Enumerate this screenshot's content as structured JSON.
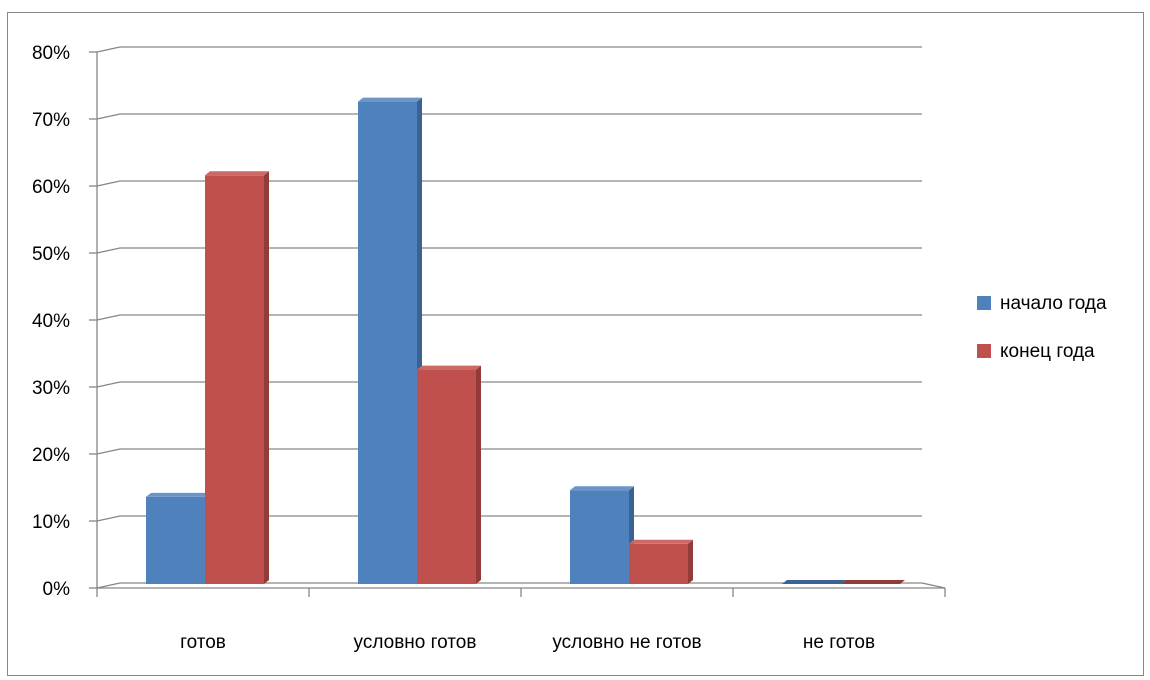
{
  "chart_data": {
    "type": "bar",
    "style": "3d-clustered-column",
    "categories": [
      "готов",
      "условно готов",
      "условно не готов",
      "не готов"
    ],
    "series": [
      {
        "name": "начало года",
        "values": [
          13,
          72,
          14,
          0
        ],
        "color": "#4f81bd",
        "side_color": "#3a6393",
        "top_color": "#6a95cb"
      },
      {
        "name": "конец года",
        "values": [
          61,
          32,
          6,
          0
        ],
        "color": "#c0504d",
        "side_color": "#933b39",
        "top_color": "#cc6966"
      }
    ],
    "ylim": [
      0,
      80
    ],
    "yticks": [
      "0%",
      "10%",
      "20%",
      "30%",
      "40%",
      "50%",
      "60%",
      "70%",
      "80%"
    ],
    "grid": true,
    "legend_position": "right",
    "title": "",
    "xlabel": "",
    "ylabel": ""
  }
}
